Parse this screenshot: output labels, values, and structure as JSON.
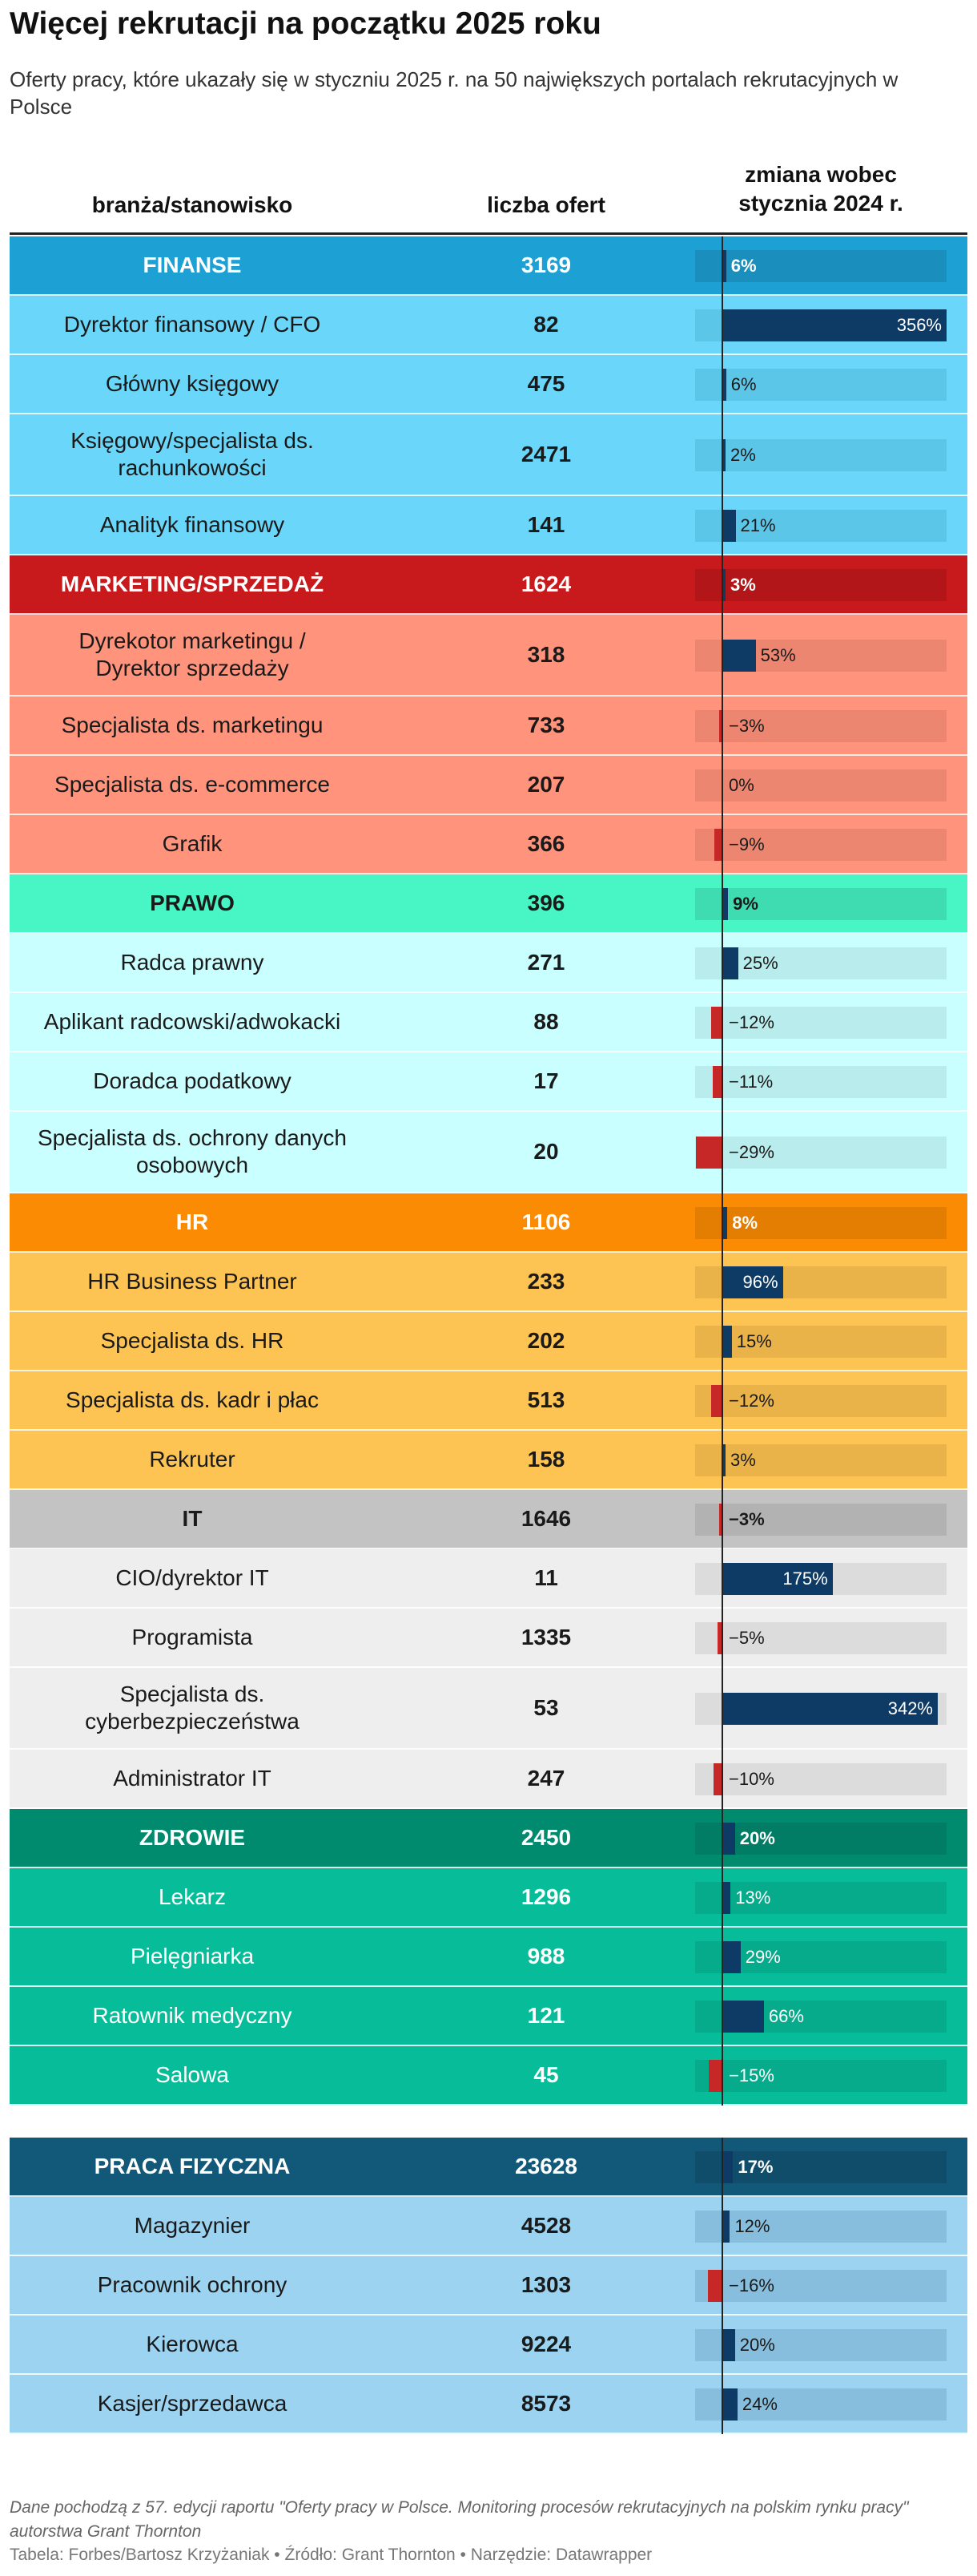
{
  "title": "Więcej rekrutacji na początku 2025 roku",
  "subtitle": "Oferty pracy, które ukazały się w styczniu 2025 r. na 50 największych portalach rekrutacyjnych w Polsce",
  "columns": {
    "name": "branża/stanowisko",
    "count": "liczba ofert",
    "change_line1": "zmiana wobec",
    "change_line2": "stycznia 2024 r."
  },
  "note": "Dane pochodzą z 57. edycji raportu \"Oferty pracy w Polsce. Monitoring procesów rekrutacyjnych na polskim rynku pracy\" autorstwa Grant Thornton",
  "footer": "Tabela: Forbes/Bartosz Krzyżaniak • Źródło: Grant Thornton • Narzędzie: Datawrapper",
  "colors": {
    "positive_bar": "#0d3b66",
    "negative_bar": "#c62828"
  },
  "chart_data": {
    "type": "table",
    "bar_column": "zmiana wobec stycznia 2024 r.",
    "bar_range_percent": [
      -30,
      356
    ],
    "groups": [
      {
        "name": "FINANSE",
        "count": "3169",
        "change": 6,
        "label": "6%",
        "colors": {
          "header": "#1da1d4",
          "rows": "#6ad7fa",
          "track": "#5cc6e8",
          "header_track": "#1a8fbd",
          "header_text": "#ffffff",
          "row_text": "#1a1a1a"
        },
        "rows": [
          {
            "name": "Dyrektor finansowy / CFO",
            "count": "82",
            "change": 356,
            "label": "356%"
          },
          {
            "name": "Główny księgowy",
            "count": "475",
            "change": 6,
            "label": "6%"
          },
          {
            "name": "Księgowy/specjalista ds. rachunkowości",
            "count": "2471",
            "change": 2,
            "label": "2%"
          },
          {
            "name": "Analityk finansowy",
            "count": "141",
            "change": 21,
            "label": "21%"
          }
        ]
      },
      {
        "name": "MARKETING/SPRZEDAŻ",
        "count": "1624",
        "change": 3,
        "label": "3%",
        "colors": {
          "header": "#c8191c",
          "rows": "#ff937c",
          "track": "#ec8670",
          "header_track": "#b31619",
          "header_text": "#ffffff",
          "row_text": "#1a1a1a"
        },
        "rows": [
          {
            "name": "Dyrekotor marketingu / Dyrektor sprzedaży",
            "count": "318",
            "change": 53,
            "label": "53%"
          },
          {
            "name": "Specjalista ds. marketingu",
            "count": "733",
            "change": -3,
            "label": "−3%"
          },
          {
            "name": "Specjalista ds. e-commerce",
            "count": "207",
            "change": 0,
            "label": "0%"
          },
          {
            "name": "Grafik",
            "count": "366",
            "change": -9,
            "label": "−9%"
          }
        ]
      },
      {
        "name": "PRAWO",
        "count": "396",
        "change": 9,
        "label": "9%",
        "colors": {
          "header": "#47f5c5",
          "rows": "#caffff",
          "track": "#b9ecec",
          "header_track": "#3fdcb1",
          "header_text": "#1a1a1a",
          "row_text": "#1a1a1a"
        },
        "rows": [
          {
            "name": "Radca prawny",
            "count": "271",
            "change": 25,
            "label": "25%"
          },
          {
            "name": "Aplikant radcowski/adwokacki",
            "count": "88",
            "change": -12,
            "label": "−12%"
          },
          {
            "name": "Doradca podatkowy",
            "count": "17",
            "change": -11,
            "label": "−11%"
          },
          {
            "name": "Specjalista ds. ochrony danych osobowych",
            "count": "20",
            "change": -29,
            "label": "−29%"
          }
        ]
      },
      {
        "name": "HR",
        "count": "1106",
        "change": 8,
        "label": "8%",
        "colors": {
          "header": "#fb8b02",
          "rows": "#fdc454",
          "track": "#eab34a",
          "header_track": "#e37e03",
          "header_text": "#ffffff",
          "row_text": "#1a1a1a"
        },
        "rows": [
          {
            "name": "HR Business Partner",
            "count": "233",
            "change": 96,
            "label": "96%"
          },
          {
            "name": "Specjalista ds. HR",
            "count": "202",
            "change": 15,
            "label": "15%"
          },
          {
            "name": "Specjalista ds. kadr i płac",
            "count": "513",
            "change": -12,
            "label": "−12%"
          },
          {
            "name": "Rekruter",
            "count": "158",
            "change": 3,
            "label": "3%"
          }
        ]
      },
      {
        "name": "IT",
        "count": "1646",
        "change": -3,
        "label": "−3%",
        "colors": {
          "header": "#c3c3c3",
          "rows": "#eeeeee",
          "track": "#dcdcdc",
          "header_track": "#b2b2b2",
          "header_text": "#1a1a1a",
          "row_text": "#1a1a1a"
        },
        "rows": [
          {
            "name": "CIO/dyrektor IT",
            "count": "11",
            "change": 175,
            "label": "175%"
          },
          {
            "name": "Programista",
            "count": "1335",
            "change": -5,
            "label": "−5%"
          },
          {
            "name": "Specjalista ds. cyberbezpieczeństwa",
            "count": "53",
            "change": 342,
            "label": "342%"
          },
          {
            "name": "Administrator IT",
            "count": "247",
            "change": -10,
            "label": "−10%"
          }
        ]
      },
      {
        "name": "ZDROWIE",
        "count": "2450",
        "change": 20,
        "label": "20%",
        "colors": {
          "header": "#008a6e",
          "rows": "#07bd99",
          "track": "#06ab8b",
          "header_track": "#007d64",
          "header_text": "#ffffff",
          "row_text": "#ffffff"
        },
        "rows": [
          {
            "name": "Lekarz",
            "count": "1296",
            "change": 13,
            "label": "13%"
          },
          {
            "name": "Pielęgniarka",
            "count": "988",
            "change": 29,
            "label": "29%"
          },
          {
            "name": "Ratownik medyczny",
            "count": "121",
            "change": 66,
            "label": "66%"
          },
          {
            "name": "Salowa",
            "count": "45",
            "change": -15,
            "label": "−15%"
          }
        ]
      },
      {
        "name": "PRACA FIZYCZNA",
        "count": "23628",
        "change": 17,
        "label": "17%",
        "colors": {
          "header": "#125878",
          "rows": "#9bd3f1",
          "track": "#88bedd",
          "header_track": "#0f4d6a",
          "header_text": "#ffffff",
          "row_text": "#1a1a1a"
        },
        "rows": [
          {
            "name": "Magazynier",
            "count": "4528",
            "change": 12,
            "label": "12%"
          },
          {
            "name": "Pracownik ochrony",
            "count": "1303",
            "change": -16,
            "label": "−16%"
          },
          {
            "name": "Kierowca",
            "count": "9224",
            "change": 20,
            "label": "20%"
          },
          {
            "name": "Kasjer/sprzedawca",
            "count": "8573",
            "change": 24,
            "label": "24%"
          }
        ]
      }
    ]
  }
}
